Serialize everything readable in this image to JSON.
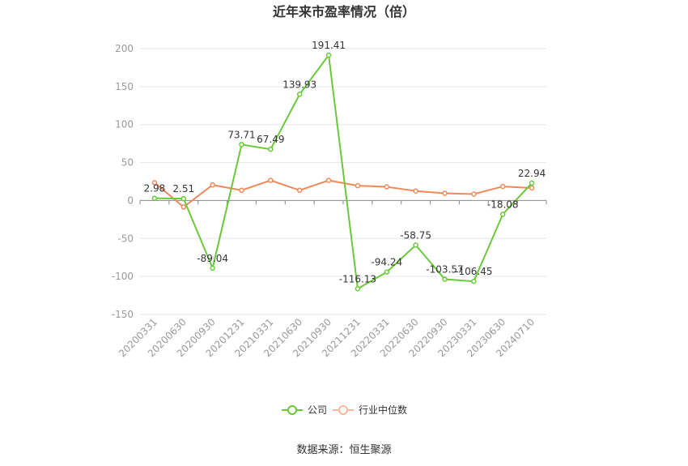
{
  "chart_data": {
    "type": "line",
    "title": "近年来市盈率情况（倍）",
    "categories": [
      "20200331",
      "20200630",
      "20200930",
      "20201231",
      "20210331",
      "20210630",
      "20210930",
      "20211231",
      "20220331",
      "20220630",
      "20220930",
      "20230331",
      "20230630",
      "20240710"
    ],
    "series": [
      {
        "name": "公司",
        "color": "#6ac83a",
        "values": [
          2.98,
          2.51,
          -89.04,
          73.71,
          67.49,
          139.93,
          191.41,
          -116.13,
          -94.24,
          -58.75,
          -103.57,
          -106.45,
          -18.08,
          22.94
        ],
        "labels": [
          "2.98",
          "2.51",
          "-89.04",
          "73.71",
          "67.49",
          "139.93",
          "191.41",
          "-116.13",
          "-94.24",
          "-58.75",
          "-103.57",
          "-106.45",
          "-18.08",
          "22.94"
        ]
      },
      {
        "name": "行业中位数",
        "color": "#f0895a",
        "values": [
          23.5,
          -8.5,
          20.5,
          13.5,
          26.5,
          13.5,
          26.5,
          19.5,
          18.0,
          12.5,
          9.5,
          8.5,
          18.5,
          16.5
        ]
      }
    ],
    "yticks": [
      200,
      150,
      100,
      50,
      0,
      -50,
      -100,
      -150
    ],
    "ylim": [
      -150,
      200
    ],
    "grid": true,
    "legend_position": "bottom"
  },
  "source_text": "数据来源：恒生聚源"
}
